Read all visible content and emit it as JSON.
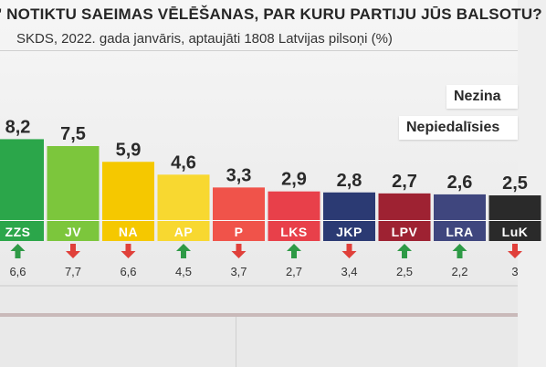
{
  "header": {
    "title": "' NOTIKTU SAEIMAS VĒLĒŠANAS, PAR KURU PARTIJU JŪS BALSOTU?",
    "subtitle": "SKDS, 2022. gada janvāris, aptaujāti 1808 Latvijas pilsoņi (%)"
  },
  "side_tags": [
    "Nezina",
    "Nepiedalīsies"
  ],
  "chart_data": {
    "type": "bar",
    "title": "' NOTIKTU SAEIMAS VĒLĒŠANAS, PAR KURU PARTIJU JŪS BALSOTU?",
    "subtitle": "SKDS, 2022. gada janvāris, aptaujāti 1808 Latvijas pilsoņi (%)",
    "categories": [
      "ZZS",
      "JV",
      "NA",
      "AP",
      "P",
      "LKS",
      "JKP",
      "LPV",
      "LRA",
      "LuK"
    ],
    "values": [
      8.2,
      7.5,
      5.9,
      4.6,
      3.3,
      2.9,
      2.8,
      2.7,
      2.6,
      2.5
    ],
    "value_labels": [
      "8,2",
      "7,5",
      "5,9",
      "4,6",
      "3,3",
      "2,9",
      "2,8",
      "2,7",
      "2,6",
      "2,5"
    ],
    "previous_labels": [
      "6,6",
      "7,7",
      "6,6",
      "4,5",
      "3,7",
      "2,7",
      "3,4",
      "2,5",
      "2,2",
      "3"
    ],
    "trend": [
      "up",
      "down",
      "down",
      "up",
      "down",
      "up",
      "down",
      "up",
      "up",
      "down"
    ],
    "colors": [
      "#2ba64a",
      "#7cc63c",
      "#f5c800",
      "#f8d830",
      "#f0534a",
      "#e8404a",
      "#2b3a73",
      "#9e2232",
      "#3f467e",
      "#2a2a2a"
    ],
    "label_colors": [
      "#ffffff",
      "#ffffff",
      "#ffffff",
      "#ffffff",
      "#ffffff",
      "#ffffff",
      "#ffffff",
      "#ffffff",
      "#ffffff",
      "#ffffff"
    ],
    "trend_colors": {
      "up": "#2e9a46",
      "down": "#e0403a"
    },
    "ylim": [
      0,
      10
    ]
  }
}
